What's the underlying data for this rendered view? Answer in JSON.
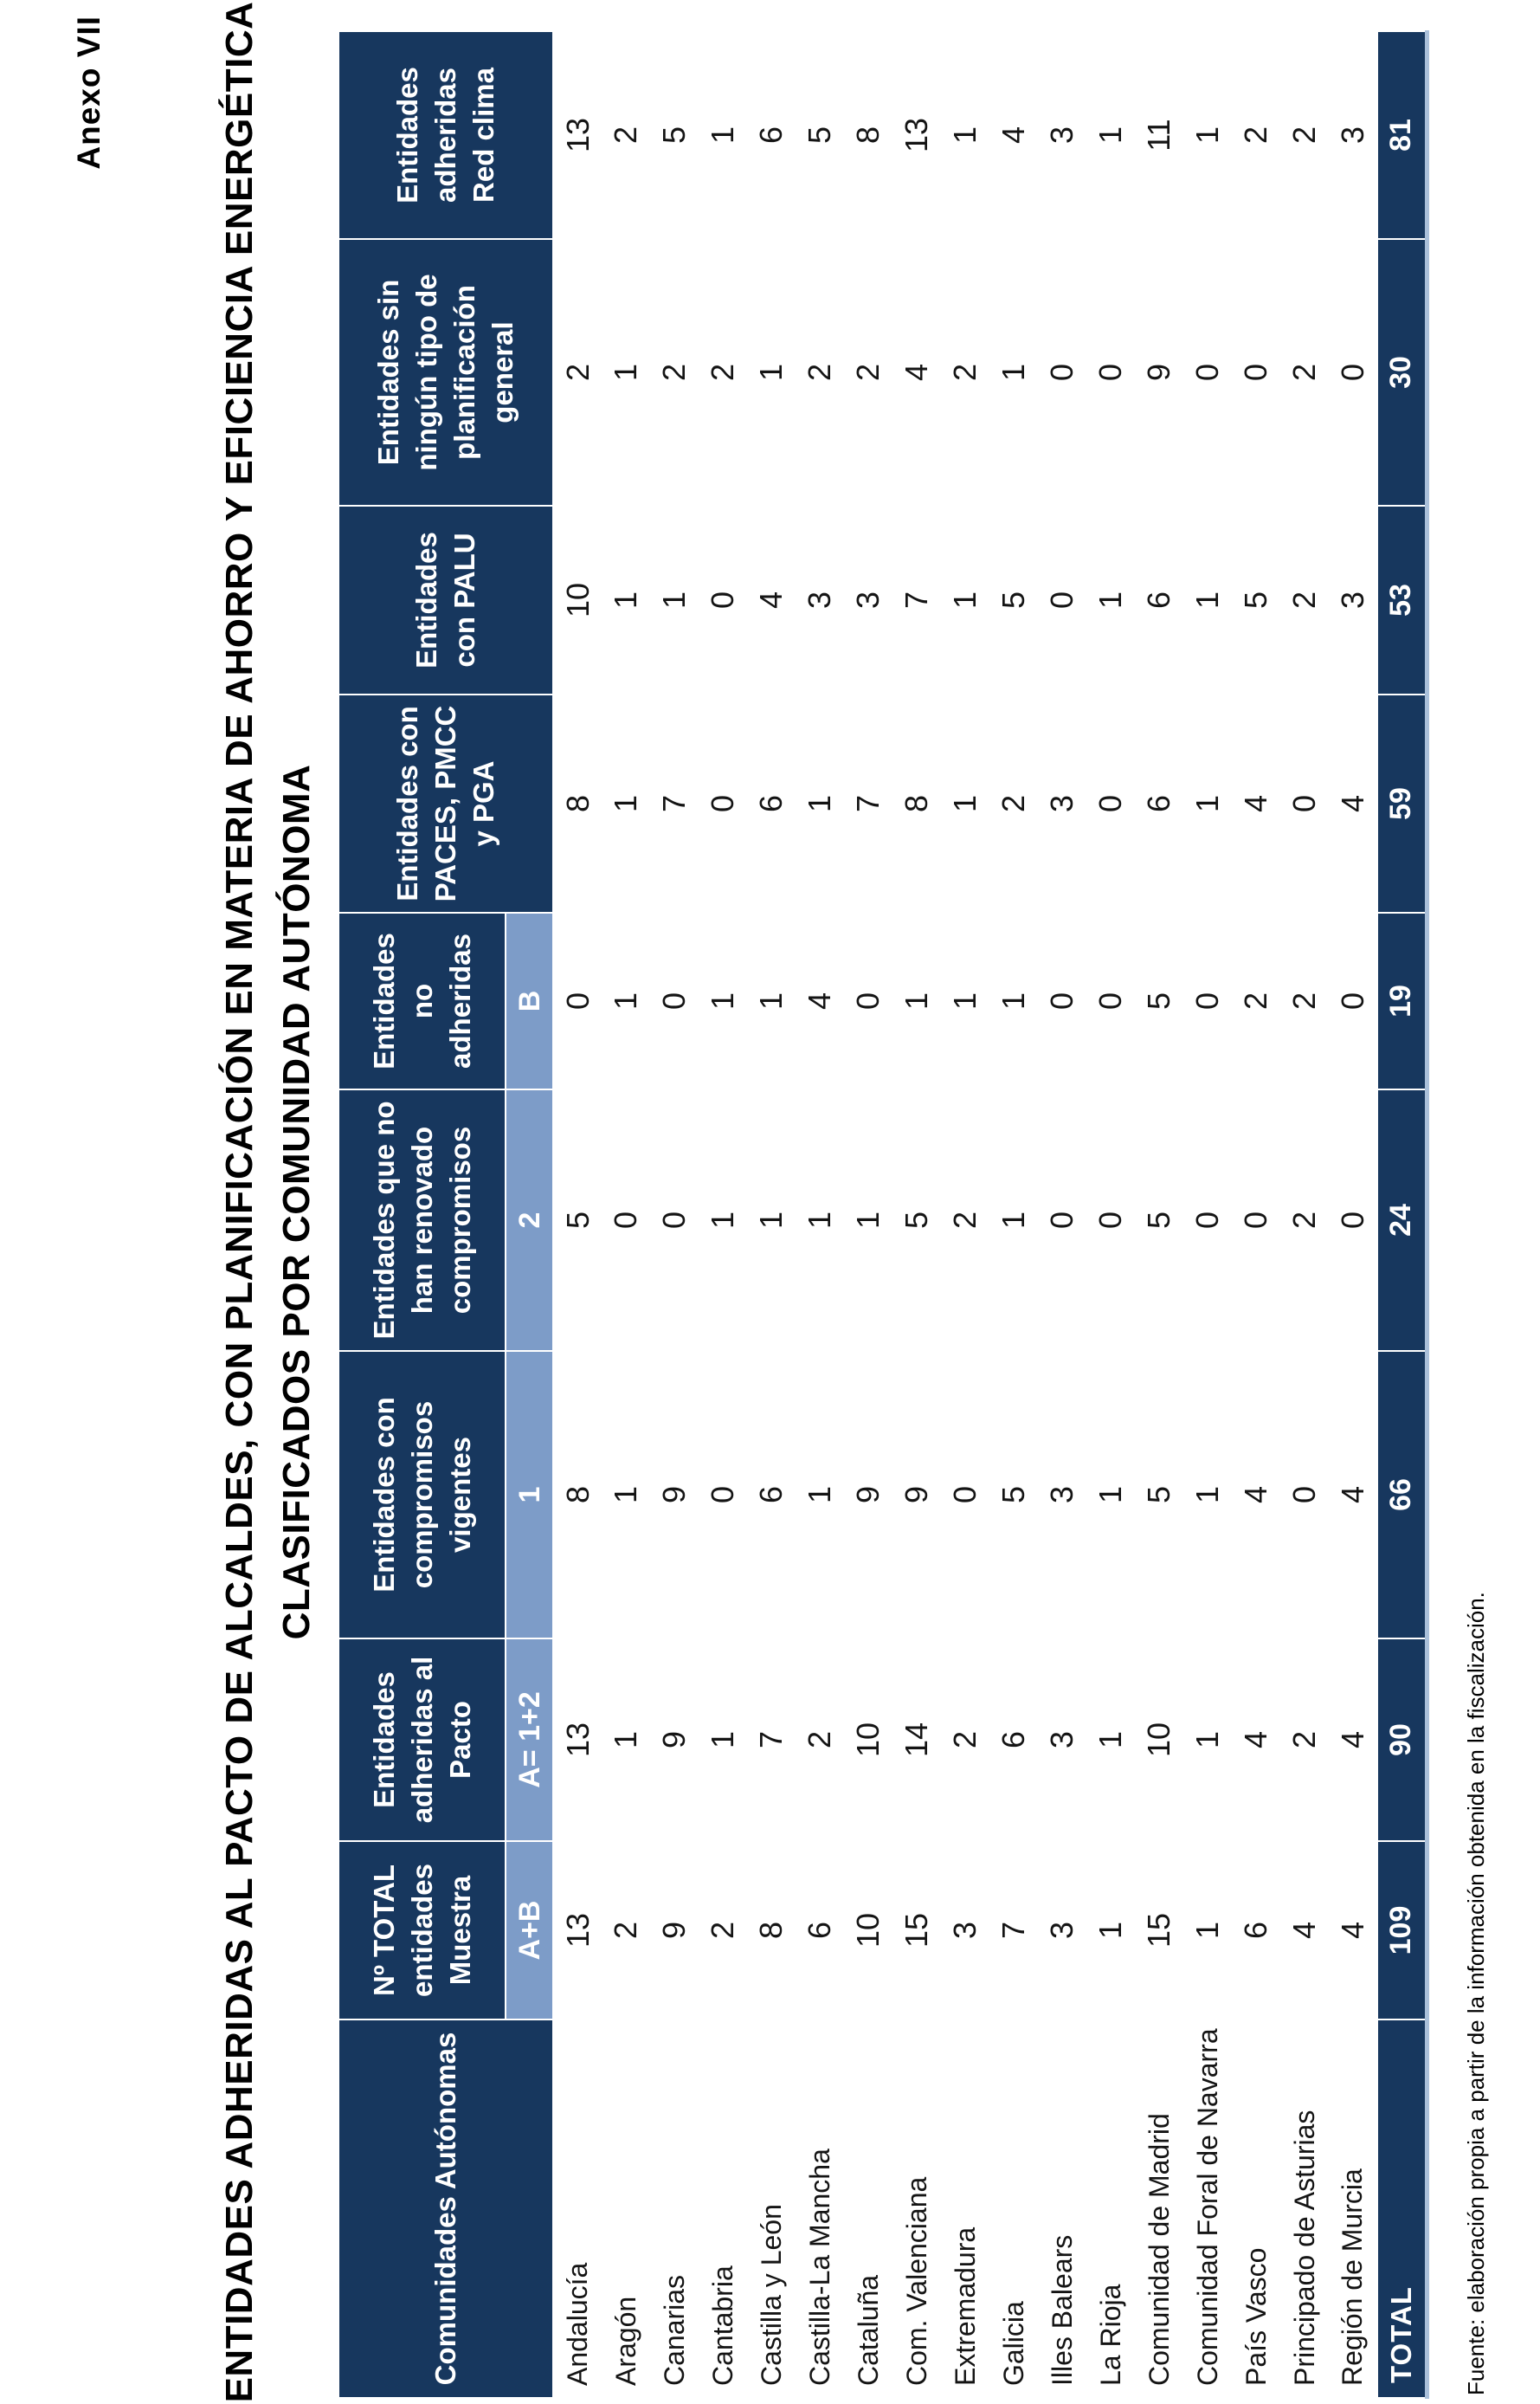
{
  "page": {
    "annex": "Anexo VII",
    "title_line1": "ENTIDADES ADHERIDAS AL PACTO DE ALCALDES, CON PLANIFICACIÓN EN MATERIA DE AHORRO Y EFICIENCIA ENERGÉTICA",
    "title_line2": "CLASIFICADOS POR COMUNIDAD AUTÓNOMA",
    "source_note": "Fuente: elaboración propia a partir de la información obtenida en la fiscalización."
  },
  "colors": {
    "header_navy": "#17375e",
    "subheader_steel_blue": "#7d9cc8",
    "table_edge_light_blue": "#aac0da"
  },
  "table": {
    "corner_header": "Comunidades Autónomas",
    "groups": [
      {
        "label": "Nº TOTAL\nentidades\nMuestra",
        "sub": "A+B"
      },
      {
        "label": "Entidades\nadheridas al\nPacto",
        "sub": "A= 1+2"
      },
      {
        "label": "Entidades con\ncompromisos\nvigentes",
        "sub": "1"
      },
      {
        "label": "Entidades que no\nhan renovado\ncompromisos",
        "sub": "2"
      },
      {
        "label": "Entidades\nno\nadheridas",
        "sub": "B"
      },
      {
        "label": "Entidades con\nPACES, PMCC\ny PGA",
        "sub": ""
      },
      {
        "label": "Entidades\ncon PALU",
        "sub": ""
      },
      {
        "label": "Entidades sin\nningún tipo de\nplanificación\ngeneral",
        "sub": ""
      },
      {
        "label": "Entidades\nadheridas\nRed clima",
        "sub": ""
      }
    ],
    "rows": [
      {
        "name": "Andalucía",
        "values": [
          13,
          13,
          8,
          5,
          0,
          8,
          10,
          2,
          13
        ]
      },
      {
        "name": "Aragón",
        "values": [
          2,
          1,
          1,
          0,
          1,
          1,
          1,
          1,
          2
        ]
      },
      {
        "name": "Canarias",
        "values": [
          9,
          9,
          9,
          0,
          0,
          7,
          1,
          2,
          5
        ]
      },
      {
        "name": "Cantabria",
        "values": [
          2,
          1,
          0,
          1,
          1,
          0,
          0,
          2,
          1
        ]
      },
      {
        "name": "Castilla y León",
        "values": [
          8,
          7,
          6,
          1,
          1,
          6,
          4,
          1,
          6
        ]
      },
      {
        "name": "Castilla-La Mancha",
        "values": [
          6,
          2,
          1,
          1,
          4,
          1,
          3,
          2,
          5
        ]
      },
      {
        "name": "Cataluña",
        "values": [
          10,
          10,
          9,
          1,
          0,
          7,
          3,
          2,
          8
        ]
      },
      {
        "name": "Com. Valenciana",
        "values": [
          15,
          14,
          9,
          5,
          1,
          8,
          7,
          4,
          13
        ]
      },
      {
        "name": "Extremadura",
        "values": [
          3,
          2,
          0,
          2,
          1,
          1,
          1,
          2,
          1
        ]
      },
      {
        "name": "Galicia",
        "values": [
          7,
          6,
          5,
          1,
          1,
          2,
          5,
          1,
          4
        ]
      },
      {
        "name": "Illes Balears",
        "values": [
          3,
          3,
          3,
          0,
          0,
          3,
          0,
          0,
          3
        ]
      },
      {
        "name": "La Rioja",
        "values": [
          1,
          1,
          1,
          0,
          0,
          0,
          1,
          0,
          1
        ]
      },
      {
        "name": "Comunidad de Madrid",
        "values": [
          15,
          10,
          5,
          5,
          5,
          6,
          6,
          9,
          11
        ]
      },
      {
        "name": "Comunidad Foral de Navarra",
        "values": [
          1,
          1,
          1,
          0,
          0,
          1,
          1,
          0,
          1
        ]
      },
      {
        "name": "País Vasco",
        "values": [
          6,
          4,
          4,
          0,
          2,
          4,
          5,
          0,
          2
        ]
      },
      {
        "name": "Principado de Asturias",
        "values": [
          4,
          2,
          0,
          2,
          2,
          0,
          2,
          2,
          2
        ]
      },
      {
        "name": "Región de Murcia",
        "values": [
          4,
          4,
          4,
          0,
          0,
          4,
          3,
          0,
          3
        ]
      }
    ],
    "total": {
      "label": "TOTAL",
      "values": [
        109,
        90,
        66,
        24,
        19,
        59,
        53,
        30,
        81
      ]
    }
  }
}
